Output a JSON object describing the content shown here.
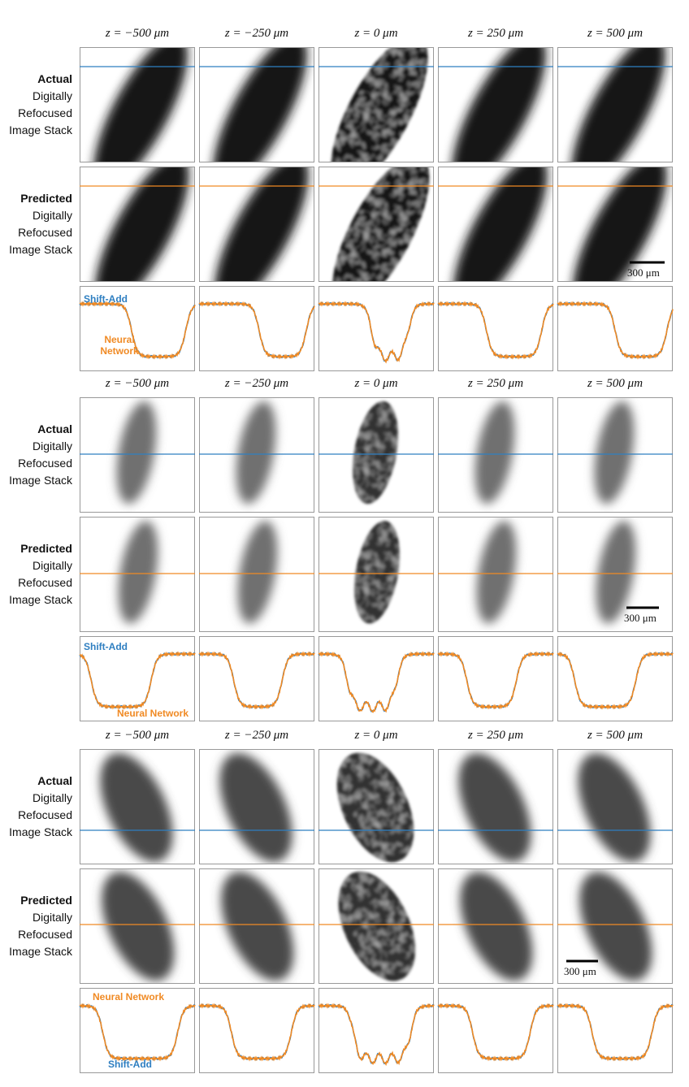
{
  "columns": [
    "z = −500 μm",
    "z = −250 μm",
    "z = 0 μm",
    "z = 250 μm",
    "z = 500 μm"
  ],
  "rows": [
    {
      "title": "Actual",
      "lines": [
        "Digitally",
        "Refocused",
        "Image Stack"
      ]
    },
    {
      "title": "Predicted",
      "lines": [
        "Digitally",
        "Refocused",
        "Image Stack"
      ]
    }
  ],
  "scale_bar": "300 μm",
  "profile_labels": {
    "shift_add": "Shift-Add",
    "neural_network": "Neural Network"
  }
}
